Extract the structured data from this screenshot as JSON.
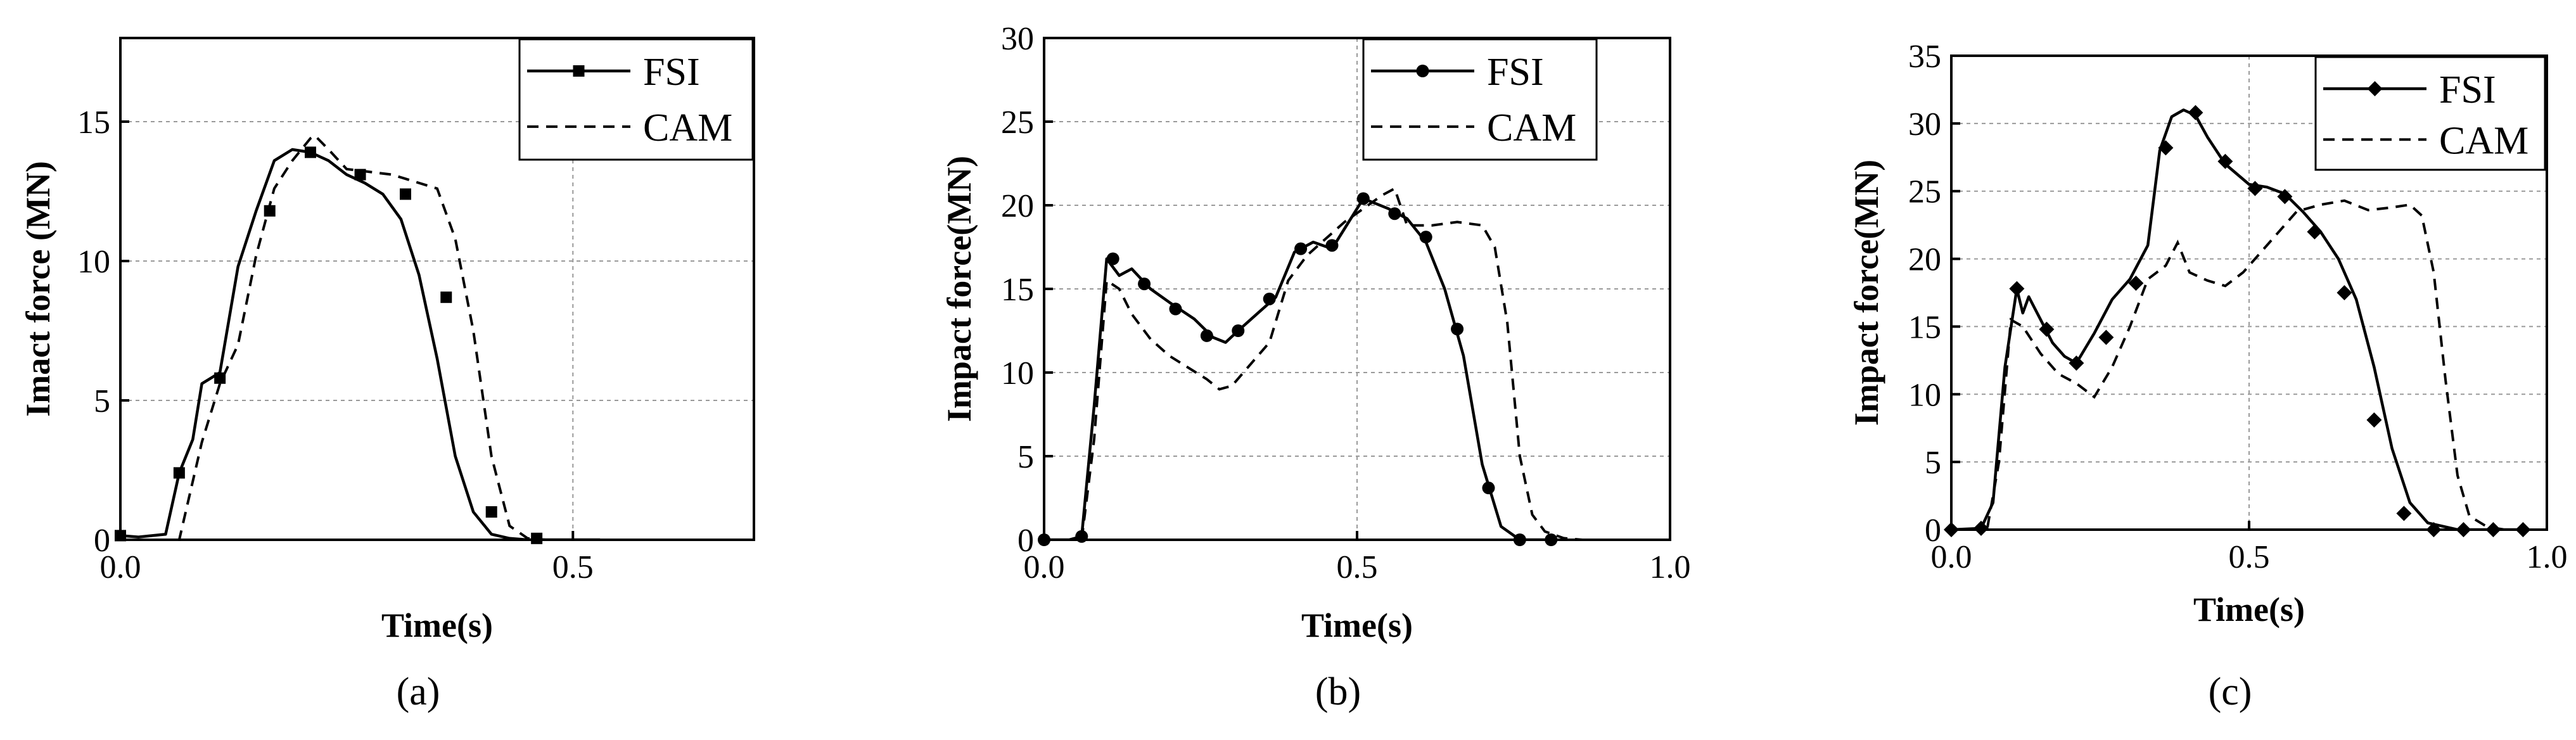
{
  "chart_data": [
    {
      "type": "line",
      "panel_label": "(a)",
      "xlabel": "Time(s)",
      "ylabel": "Imact force (MN)",
      "xlim": [
        0,
        0.7
      ],
      "ylim": [
        0,
        18
      ],
      "xticks": [
        0.0,
        0.5
      ],
      "xtick_labels": [
        "0.0",
        "0.5"
      ],
      "yticks": [
        0,
        5,
        10,
        15
      ],
      "ytick_labels": [
        "0",
        "5",
        "10",
        "15"
      ],
      "grid": true,
      "legend": "top-right",
      "marker": "square",
      "series": [
        {
          "name": "FSI",
          "style": "solid-marker",
          "x": [
            0.0,
            0.02,
            0.05,
            0.065,
            0.08,
            0.09,
            0.1,
            0.11,
            0.13,
            0.15,
            0.17,
            0.19,
            0.21,
            0.23,
            0.25,
            0.27,
            0.29,
            0.31,
            0.33,
            0.35,
            0.37,
            0.39,
            0.41,
            0.43,
            0.45,
            0.47,
            0.5,
            0.53
          ],
          "y": [
            0.15,
            0.1,
            0.2,
            2.4,
            3.6,
            5.6,
            5.8,
            6.0,
            9.8,
            11.8,
            13.6,
            14.0,
            13.9,
            13.6,
            13.1,
            12.8,
            12.4,
            11.5,
            9.5,
            6.5,
            3.0,
            1.0,
            0.2,
            0.05,
            0.0,
            0.0,
            0.0,
            0.0
          ],
          "marker_x": [
            0.0,
            0.065,
            0.11,
            0.165,
            0.21,
            0.265,
            0.315,
            0.36,
            0.41,
            0.46
          ],
          "marker_y": [
            0.15,
            2.4,
            5.8,
            11.8,
            13.9,
            13.1,
            12.4,
            8.7,
            1.0,
            0.05
          ]
        },
        {
          "name": "CAM",
          "style": "dashed",
          "x": [
            0.0,
            0.05,
            0.065,
            0.09,
            0.11,
            0.13,
            0.15,
            0.17,
            0.19,
            0.21,
            0.215,
            0.23,
            0.25,
            0.3,
            0.35,
            0.37,
            0.39,
            0.41,
            0.43,
            0.45,
            0.47
          ],
          "y": [
            0.0,
            0.0,
            0.0,
            3.5,
            5.6,
            7.0,
            10.2,
            12.6,
            13.6,
            14.4,
            14.5,
            14.0,
            13.3,
            13.1,
            12.6,
            10.8,
            7.5,
            3.0,
            0.5,
            0.05,
            0.0
          ]
        }
      ]
    },
    {
      "type": "line",
      "panel_label": "(b)",
      "xlabel": "Time(s)",
      "ylabel": "Impact force(MN)",
      "xlim": [
        0,
        1.0
      ],
      "ylim": [
        0,
        30
      ],
      "xticks": [
        0.0,
        0.5,
        1.0
      ],
      "xtick_labels": [
        "0.0",
        "0.5",
        "1.0"
      ],
      "yticks": [
        0,
        5,
        10,
        15,
        20,
        25,
        30
      ],
      "ytick_labels": [
        "0",
        "5",
        "10",
        "15",
        "20",
        "25",
        "30"
      ],
      "grid": true,
      "legend": "top-right",
      "marker": "circle",
      "series": [
        {
          "name": "FSI",
          "style": "solid-marker",
          "x": [
            0.0,
            0.04,
            0.06,
            0.08,
            0.1,
            0.12,
            0.14,
            0.17,
            0.2,
            0.24,
            0.27,
            0.29,
            0.31,
            0.34,
            0.37,
            0.4,
            0.43,
            0.46,
            0.48,
            0.51,
            0.55,
            0.58,
            0.61,
            0.64,
            0.67,
            0.7,
            0.73,
            0.76,
            0.8
          ],
          "y": [
            0.0,
            0.0,
            0.2,
            8.0,
            16.8,
            15.8,
            16.2,
            15.0,
            14.2,
            13.2,
            12.1,
            11.8,
            12.5,
            13.5,
            14.5,
            17.2,
            17.8,
            17.4,
            18.6,
            20.4,
            19.8,
            19.2,
            17.8,
            15.0,
            11.0,
            4.5,
            0.8,
            0.0,
            0.0
          ],
          "marker_x": [
            0.0,
            0.06,
            0.11,
            0.16,
            0.21,
            0.26,
            0.31,
            0.36,
            0.41,
            0.46,
            0.51,
            0.56,
            0.61,
            0.66,
            0.71,
            0.76,
            0.81
          ],
          "marker_y": [
            0.0,
            0.2,
            16.8,
            15.3,
            13.8,
            12.2,
            12.5,
            14.4,
            17.4,
            17.6,
            20.4,
            19.5,
            18.1,
            12.6,
            3.1,
            0.0,
            0.0
          ]
        },
        {
          "name": "CAM",
          "style": "dashed",
          "x": [
            0.0,
            0.06,
            0.08,
            0.1,
            0.12,
            0.14,
            0.17,
            0.2,
            0.23,
            0.26,
            0.28,
            0.3,
            0.33,
            0.36,
            0.39,
            0.42,
            0.45,
            0.48,
            0.51,
            0.54,
            0.56,
            0.58,
            0.62,
            0.66,
            0.7,
            0.72,
            0.74,
            0.76,
            0.78,
            0.8,
            0.83,
            0.86
          ],
          "y": [
            0.0,
            0.0,
            6.0,
            15.5,
            15.0,
            13.5,
            12.0,
            11.0,
            10.3,
            9.6,
            9.0,
            9.2,
            10.5,
            11.8,
            15.5,
            17.0,
            18.0,
            19.0,
            19.8,
            20.6,
            21.0,
            18.8,
            18.8,
            19.0,
            18.8,
            17.5,
            13.0,
            5.0,
            1.5,
            0.5,
            0.1,
            0.0
          ]
        }
      ]
    },
    {
      "type": "line",
      "panel_label": "(c)",
      "xlabel": "Time(s)",
      "ylabel": "Impact force(MN)",
      "xlim": [
        0,
        1.0
      ],
      "ylim": [
        0,
        35
      ],
      "xticks": [
        0.0,
        0.5,
        1.0
      ],
      "xtick_labels": [
        "0.0",
        "0.5",
        "1.0"
      ],
      "yticks": [
        0,
        5,
        10,
        15,
        20,
        25,
        30,
        35
      ],
      "ytick_labels": [
        "0",
        "5",
        "10",
        "15",
        "20",
        "25",
        "30",
        "35"
      ],
      "grid": true,
      "legend": "top-right",
      "marker": "diamond",
      "series": [
        {
          "name": "FSI",
          "style": "solid-marker",
          "x": [
            0.0,
            0.05,
            0.07,
            0.09,
            0.11,
            0.12,
            0.13,
            0.15,
            0.17,
            0.19,
            0.21,
            0.24,
            0.27,
            0.3,
            0.33,
            0.35,
            0.37,
            0.39,
            0.41,
            0.43,
            0.46,
            0.5,
            0.53,
            0.56,
            0.59,
            0.62,
            0.65,
            0.68,
            0.71,
            0.74,
            0.77,
            0.8,
            0.85,
            0.9,
            0.95
          ],
          "y": [
            0.0,
            0.1,
            2.0,
            12.0,
            17.8,
            16.0,
            17.2,
            15.5,
            13.8,
            12.8,
            12.3,
            14.5,
            17.0,
            18.5,
            21.0,
            28.0,
            30.5,
            31.0,
            30.6,
            29.0,
            27.0,
            25.5,
            25.3,
            24.8,
            23.5,
            22.0,
            20.0,
            17.0,
            12.0,
            6.0,
            2.0,
            0.5,
            0.0,
            0.0,
            0.0
          ],
          "marker_x": [
            0.0,
            0.05,
            0.11,
            0.16,
            0.21,
            0.26,
            0.31,
            0.36,
            0.41,
            0.46,
            0.51,
            0.56,
            0.61,
            0.66,
            0.71,
            0.76,
            0.81,
            0.86,
            0.91,
            0.96
          ],
          "marker_y": [
            0.0,
            0.1,
            17.8,
            14.8,
            12.3,
            14.2,
            18.2,
            28.2,
            30.8,
            27.2,
            25.2,
            24.6,
            22.0,
            17.5,
            8.1,
            1.2,
            0.0,
            0.0,
            0.0,
            0.0
          ]
        },
        {
          "name": "CAM",
          "style": "dashed",
          "x": [
            0.0,
            0.06,
            0.08,
            0.1,
            0.12,
            0.15,
            0.18,
            0.21,
            0.24,
            0.27,
            0.3,
            0.33,
            0.36,
            0.38,
            0.4,
            0.43,
            0.46,
            0.49,
            0.52,
            0.55,
            0.58,
            0.62,
            0.66,
            0.7,
            0.74,
            0.77,
            0.79,
            0.81,
            0.83,
            0.85,
            0.87,
            0.9,
            0.93
          ],
          "y": [
            0.0,
            0.0,
            5.0,
            15.5,
            15.0,
            13.0,
            11.5,
            10.8,
            9.8,
            12.0,
            15.0,
            18.5,
            19.5,
            21.2,
            19.0,
            18.4,
            18.0,
            19.0,
            20.5,
            22.0,
            23.5,
            24.0,
            24.3,
            23.6,
            23.8,
            24.0,
            23.2,
            19.0,
            11.0,
            4.0,
            1.0,
            0.2,
            0.0
          ]
        }
      ]
    }
  ]
}
